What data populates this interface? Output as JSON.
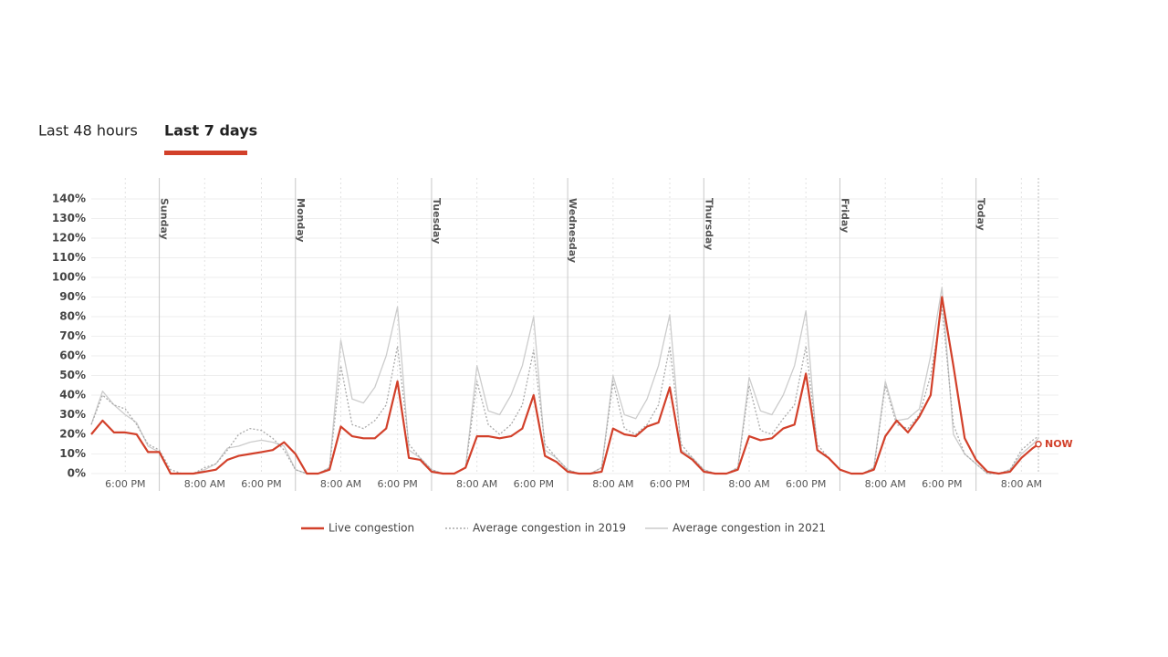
{
  "tabs": [
    {
      "label": "Last 48 hours",
      "active": false
    },
    {
      "label": "Last 7 days",
      "active": true
    }
  ],
  "chart_data": {
    "type": "line",
    "x": [
      0,
      2,
      4,
      6,
      8,
      10,
      12,
      14,
      16,
      18,
      20,
      22,
      24,
      26,
      28,
      30,
      32,
      34,
      36,
      38,
      40,
      42,
      44,
      46,
      48,
      50,
      52,
      54,
      56,
      58,
      60,
      62,
      64,
      66,
      68,
      70,
      72,
      74,
      76,
      78,
      80,
      82,
      84,
      86,
      88,
      90,
      92,
      94,
      96,
      98,
      100,
      102,
      104,
      106,
      108,
      110,
      112,
      114,
      116,
      118,
      120,
      122,
      124,
      126,
      128,
      130,
      132,
      134,
      136,
      138,
      140,
      142,
      144,
      146,
      148,
      150,
      152,
      154,
      156,
      158,
      160,
      162,
      164,
      166,
      167
    ],
    "xlim": [
      0,
      167
    ],
    "xticks": [
      {
        "value": 6,
        "label": "6:00 PM"
      },
      {
        "value": 20,
        "label": "8:00 AM"
      },
      {
        "value": 30,
        "label": "6:00 PM"
      },
      {
        "value": 44,
        "label": "8:00 AM"
      },
      {
        "value": 54,
        "label": "6:00 PM"
      },
      {
        "value": 68,
        "label": "8:00 AM"
      },
      {
        "value": 78,
        "label": "6:00 PM"
      },
      {
        "value": 92,
        "label": "8:00 AM"
      },
      {
        "value": 102,
        "label": "6:00 PM"
      },
      {
        "value": 116,
        "label": "8:00 AM"
      },
      {
        "value": 126,
        "label": "6:00 PM"
      },
      {
        "value": 140,
        "label": "8:00 AM"
      },
      {
        "value": 150,
        "label": "6:00 PM"
      },
      {
        "value": 164,
        "label": "8:00 AM"
      }
    ],
    "ylim": [
      0,
      140
    ],
    "yticks": [
      {
        "value": 0,
        "label": "0%"
      },
      {
        "value": 10,
        "label": "10%"
      },
      {
        "value": 20,
        "label": "20%"
      },
      {
        "value": 30,
        "label": "30%"
      },
      {
        "value": 40,
        "label": "40%"
      },
      {
        "value": 50,
        "label": "50%"
      },
      {
        "value": 60,
        "label": "60%"
      },
      {
        "value": 70,
        "label": "70%"
      },
      {
        "value": 80,
        "label": "80%"
      },
      {
        "value": 90,
        "label": "90%"
      },
      {
        "value": 100,
        "label": "100%"
      },
      {
        "value": 110,
        "label": "110%"
      },
      {
        "value": 120,
        "label": "120%"
      },
      {
        "value": 130,
        "label": "130%"
      },
      {
        "value": 140,
        "label": "140%"
      }
    ],
    "grid": true,
    "day_markers": [
      {
        "x": 12,
        "label": "Sunday"
      },
      {
        "x": 36,
        "label": "Monday"
      },
      {
        "x": 60,
        "label": "Tuesday"
      },
      {
        "x": 84,
        "label": "Wednesday"
      },
      {
        "x": 108,
        "label": "Thursday"
      },
      {
        "x": 132,
        "label": "Friday"
      },
      {
        "x": 156,
        "label": "Today"
      }
    ],
    "now_marker": {
      "x": 167,
      "label": "NOW"
    },
    "series": [
      {
        "name": "Live congestion",
        "color": "#d2402a",
        "line_style": "solid",
        "values": [
          20,
          27,
          21,
          21,
          20,
          11,
          11,
          0,
          0,
          0,
          1,
          2,
          7,
          9,
          10,
          11,
          12,
          16,
          10,
          0,
          0,
          2,
          24,
          19,
          18,
          18,
          23,
          47,
          8,
          7,
          1,
          0,
          0,
          3,
          19,
          19,
          18,
          19,
          23,
          40,
          9,
          6,
          1,
          0,
          0,
          1,
          23,
          20,
          19,
          24,
          26,
          44,
          11,
          7,
          1,
          0,
          0,
          2,
          19,
          17,
          18,
          23,
          25,
          51,
          12,
          8,
          2,
          0,
          0,
          2,
          19,
          27,
          21,
          29,
          40,
          90,
          55,
          18,
          7,
          1,
          0,
          1,
          8,
          13,
          15
        ]
      },
      {
        "name": "Average congestion in 2019",
        "color": "#aaaaaa",
        "line_style": "dotted",
        "values": [
          25,
          40,
          35,
          33,
          25,
          15,
          12,
          2,
          0,
          0,
          3,
          5,
          12,
          20,
          23,
          22,
          18,
          12,
          2,
          0,
          0,
          3,
          55,
          25,
          23,
          27,
          35,
          65,
          15,
          8,
          2,
          0,
          0,
          3,
          47,
          25,
          20,
          25,
          35,
          63,
          15,
          8,
          2,
          0,
          0,
          3,
          47,
          23,
          20,
          25,
          35,
          65,
          15,
          8,
          2,
          0,
          0,
          3,
          45,
          22,
          20,
          28,
          35,
          65,
          15,
          8,
          2,
          0,
          0,
          3,
          45,
          25,
          23,
          30,
          50,
          85,
          25,
          10,
          5,
          0,
          0,
          2,
          12,
          17,
          19
        ]
      },
      {
        "name": "Average congestion in 2021",
        "color": "#cccccc",
        "line_style": "solid",
        "values": [
          25,
          42,
          35,
          30,
          26,
          14,
          11,
          0,
          0,
          0,
          2,
          5,
          13,
          14,
          16,
          17,
          16,
          14,
          2,
          0,
          0,
          3,
          68,
          38,
          36,
          44,
          60,
          85,
          12,
          8,
          2,
          0,
          0,
          3,
          55,
          32,
          30,
          40,
          55,
          80,
          12,
          8,
          2,
          0,
          0,
          3,
          50,
          30,
          28,
          38,
          55,
          81,
          12,
          8,
          2,
          0,
          0,
          3,
          49,
          32,
          30,
          40,
          55,
          83,
          12,
          8,
          2,
          0,
          0,
          3,
          47,
          27,
          28,
          33,
          60,
          95,
          20,
          10,
          5,
          0,
          0,
          2,
          10,
          15,
          18
        ]
      }
    ]
  }
}
